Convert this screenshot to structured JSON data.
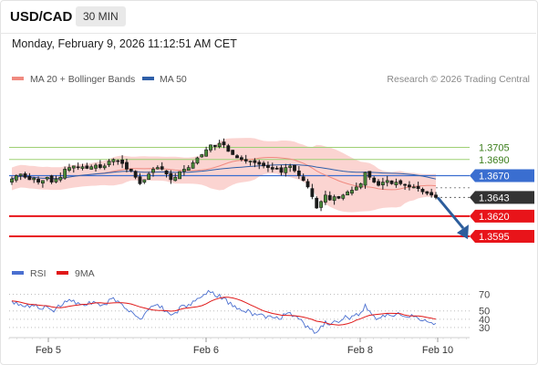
{
  "header": {
    "symbol": "USD/CAD",
    "timeframe": "30 MIN",
    "datetime": "Monday, February 9, 2026 11:12:51 AM CET"
  },
  "credit": "Research © 2026 Trading Central",
  "colors": {
    "ma20": "#f08a80",
    "ma50": "#2f5fa8",
    "band_fill": "#f9c6c2",
    "resistance_green": "#9ed074",
    "support_red": "#e8141a",
    "level_blue": "#3a6ed0",
    "last_price_bg": "#333333",
    "candle": "#1a1a1a",
    "arrow": "#2c5d9c",
    "rsi": "#4a6fd0",
    "rsi_ma": "#e01818"
  },
  "legend_main": [
    "MA 20 + Bollinger Bands",
    "MA 50"
  ],
  "legend_rsi": [
    "RSI",
    "9MA"
  ],
  "chart_data": [
    {
      "type": "candlestick",
      "title": "",
      "x_ticks": [
        "Feb 5",
        "Feb 6",
        "Feb 8",
        "Feb 10"
      ],
      "ylim": [
        1.356,
        1.378
      ],
      "levels": [
        {
          "label": "1.3705",
          "value": 1.3705,
          "kind": "resistance"
        },
        {
          "label": "1.3690",
          "value": 1.369,
          "kind": "resistance"
        },
        {
          "label": "1.3670",
          "value": 1.367,
          "kind": "pivot"
        },
        {
          "label": "1.3643",
          "value": 1.3643,
          "kind": "last-price"
        },
        {
          "label": "1.3620",
          "value": 1.362,
          "kind": "support"
        },
        {
          "label": "1.3595",
          "value": 1.3595,
          "kind": "support"
        }
      ],
      "forecast_arrow": {
        "from": 1.3643,
        "to": 1.3596
      },
      "close": [
        1.3666,
        1.367,
        1.3672,
        1.3668,
        1.3665,
        1.3667,
        1.3662,
        1.3664,
        1.3668,
        1.3662,
        1.3666,
        1.3668,
        1.3678,
        1.368,
        1.3682,
        1.368,
        1.3681,
        1.3679,
        1.3681,
        1.3683,
        1.368,
        1.3682,
        1.3688,
        1.369,
        1.3688,
        1.3685,
        1.3678,
        1.3676,
        1.3668,
        1.366,
        1.3665,
        1.3672,
        1.3678,
        1.368,
        1.3678,
        1.3672,
        1.3665,
        1.3668,
        1.3675,
        1.3678,
        1.368,
        1.3686,
        1.3692,
        1.3696,
        1.3702,
        1.3708,
        1.3706,
        1.371,
        1.3708,
        1.37,
        1.3696,
        1.3692,
        1.369,
        1.3688,
        1.3688,
        1.3686,
        1.3684,
        1.3682,
        1.368,
        1.3678,
        1.3678,
        1.3674,
        1.368,
        1.3682,
        1.3676,
        1.367,
        1.3664,
        1.3656,
        1.3644,
        1.363,
        1.3638,
        1.3646,
        1.364,
        1.3644,
        1.3642,
        1.3646,
        1.365,
        1.3652,
        1.3656,
        1.366,
        1.3674,
        1.3668,
        1.3662,
        1.3658,
        1.3662,
        1.3664,
        1.366,
        1.3662,
        1.366,
        1.3658,
        1.3656,
        1.3656,
        1.3654,
        1.365,
        1.3648,
        1.3646,
        1.3643
      ]
    },
    {
      "type": "line",
      "title": "RSI",
      "series": [
        {
          "name": "RSI"
        },
        {
          "name": "9MA"
        }
      ],
      "y_ticks": [
        70,
        50,
        40,
        30
      ],
      "ylim": [
        20,
        75
      ],
      "rsi_values": [
        62,
        61,
        58,
        55,
        54,
        56,
        53,
        52,
        55,
        51,
        53,
        55,
        62,
        64,
        63,
        60,
        58,
        57,
        58,
        60,
        56,
        58,
        64,
        66,
        62,
        58,
        52,
        50,
        44,
        40,
        46,
        52,
        56,
        58,
        56,
        50,
        45,
        48,
        55,
        57,
        58,
        62,
        65,
        67,
        70,
        72,
        68,
        70,
        66,
        58,
        55,
        52,
        50,
        48,
        49,
        47,
        46,
        45,
        44,
        42,
        43,
        40,
        46,
        48,
        44,
        40,
        36,
        32,
        28,
        24,
        32,
        38,
        33,
        38,
        36,
        40,
        42,
        44,
        47,
        48,
        58,
        50,
        44,
        41,
        45,
        47,
        44,
        46,
        45,
        43,
        42,
        43,
        41,
        38,
        37,
        36,
        35
      ]
    }
  ]
}
